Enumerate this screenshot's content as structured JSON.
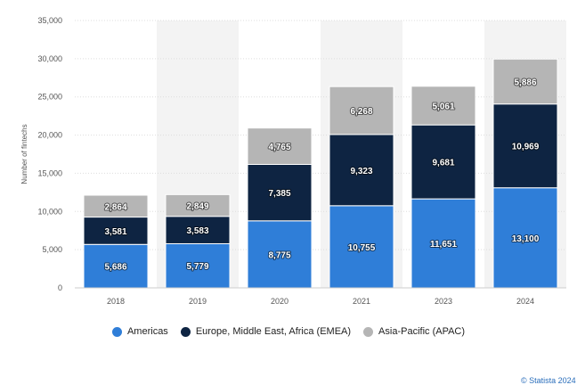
{
  "chart_data": {
    "type": "bar",
    "stacked": true,
    "categories": [
      "2018",
      "2019",
      "2020",
      "2021",
      "2023",
      "2024"
    ],
    "series": [
      {
        "name": "Americas",
        "color": "#2f7ed8",
        "values": [
          5686,
          5779,
          8775,
          10755,
          11651,
          13100
        ]
      },
      {
        "name": "Europe, Middle East, Africa (EMEA)",
        "color": "#0e2442",
        "values": [
          3581,
          3583,
          7385,
          9323,
          9681,
          10969
        ]
      },
      {
        "name": "Asia-Pacific (APAC)",
        "color": "#b5b5b5",
        "values": [
          2864,
          2849,
          4765,
          6268,
          5061,
          5886
        ]
      }
    ],
    "ylabel": "Number of fintechs",
    "xlabel": "",
    "ylim": [
      0,
      35000
    ],
    "yticks": [
      0,
      5000,
      10000,
      15000,
      20000,
      25000,
      30000,
      35000
    ],
    "ytick_labels": [
      "0",
      "5,000",
      "10,000",
      "15,000",
      "20,000",
      "25,000",
      "30,000",
      "35,000"
    ],
    "grid": true,
    "legend_position": "bottom-center"
  },
  "credit": "© Statista 2024"
}
